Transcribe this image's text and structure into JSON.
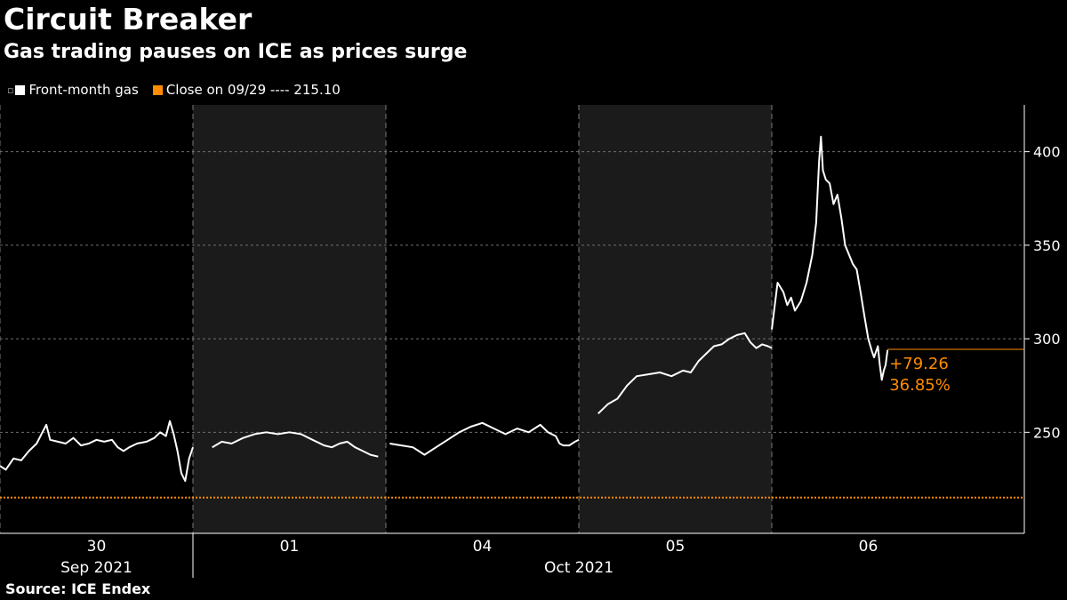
{
  "header": {
    "title": "Circuit Breaker",
    "subtitle": "Gas trading pauses on ICE as prices surge"
  },
  "legend": {
    "series_label": "Front-month gas",
    "reference_label": "Close on 09/29 ---- 215.10",
    "series_color": "#ffffff",
    "reference_color": "#ff8c00",
    "series_icon": "white-square-icon"
  },
  "source": "Source: ICE Endex",
  "chart_data": {
    "type": "line",
    "ylim": [
      196,
      425
    ],
    "yticks": [
      250,
      300,
      350,
      400
    ],
    "grid": "horizontal dashed",
    "sessions": [
      {
        "label": "30",
        "shaded": false
      },
      {
        "label": "01",
        "shaded": true
      },
      {
        "label": "04",
        "shaded": false
      },
      {
        "label": "05",
        "shaded": true
      },
      {
        "label": "06",
        "shaded": false
      }
    ],
    "month_labels": [
      {
        "label": "Sep 2021",
        "from_session": 0,
        "to_session": 0
      },
      {
        "label": "Oct 2021",
        "from_session": 1,
        "to_session": 4
      }
    ],
    "reference_line": {
      "value": 215.1
    },
    "series": [
      {
        "segments": [
          [
            [
              0.0,
              232
            ],
            [
              0.03,
              230
            ],
            [
              0.07,
              236
            ],
            [
              0.11,
              235
            ],
            [
              0.15,
              240
            ],
            [
              0.19,
              244
            ],
            [
              0.22,
              250
            ],
            [
              0.24,
              254
            ],
            [
              0.26,
              246
            ],
            [
              0.3,
              245
            ],
            [
              0.34,
              244
            ],
            [
              0.38,
              247
            ],
            [
              0.42,
              243
            ],
            [
              0.46,
              244
            ],
            [
              0.5,
              246
            ],
            [
              0.54,
              245
            ],
            [
              0.58,
              246
            ],
            [
              0.61,
              242
            ],
            [
              0.64,
              240
            ],
            [
              0.67,
              242
            ],
            [
              0.71,
              244
            ],
            [
              0.76,
              245
            ],
            [
              0.8,
              247
            ],
            [
              0.83,
              250
            ],
            [
              0.86,
              248
            ],
            [
              0.88,
              256
            ],
            [
              0.9,
              249
            ],
            [
              0.92,
              240
            ],
            [
              0.94,
              228
            ],
            [
              0.96,
              224
            ],
            [
              0.98,
              236
            ],
            [
              1.0,
              242
            ]
          ],
          [
            [
              0.1,
              242
            ],
            [
              0.15,
              245
            ],
            [
              0.2,
              244
            ],
            [
              0.26,
              247
            ],
            [
              0.32,
              249
            ],
            [
              0.38,
              250
            ],
            [
              0.44,
              249
            ],
            [
              0.5,
              250
            ],
            [
              0.56,
              249
            ],
            [
              0.62,
              246
            ],
            [
              0.68,
              243
            ],
            [
              0.72,
              242
            ],
            [
              0.76,
              244
            ],
            [
              0.8,
              245
            ],
            [
              0.84,
              242
            ],
            [
              0.88,
              240
            ],
            [
              0.92,
              238
            ],
            [
              0.96,
              237
            ]
          ],
          [
            [
              0.02,
              244
            ],
            [
              0.08,
              243
            ],
            [
              0.14,
              242
            ],
            [
              0.2,
              238
            ],
            [
              0.26,
              242
            ],
            [
              0.32,
              246
            ],
            [
              0.38,
              250
            ],
            [
              0.44,
              253
            ],
            [
              0.5,
              255
            ],
            [
              0.56,
              252
            ],
            [
              0.62,
              249
            ],
            [
              0.68,
              252
            ],
            [
              0.74,
              250
            ],
            [
              0.8,
              254
            ],
            [
              0.84,
              250
            ],
            [
              0.88,
              248
            ],
            [
              0.9,
              244
            ],
            [
              0.92,
              243
            ],
            [
              0.95,
              243
            ],
            [
              0.98,
              245
            ],
            [
              1.0,
              246
            ]
          ],
          [
            [
              0.1,
              260
            ],
            [
              0.15,
              265
            ],
            [
              0.2,
              268
            ],
            [
              0.25,
              275
            ],
            [
              0.3,
              280
            ],
            [
              0.36,
              281
            ],
            [
              0.42,
              282
            ],
            [
              0.48,
              280
            ],
            [
              0.54,
              283
            ],
            [
              0.58,
              282
            ],
            [
              0.62,
              288
            ],
            [
              0.66,
              292
            ],
            [
              0.7,
              296
            ],
            [
              0.74,
              297
            ],
            [
              0.78,
              300
            ],
            [
              0.82,
              302
            ],
            [
              0.86,
              303
            ],
            [
              0.89,
              298
            ],
            [
              0.92,
              295
            ],
            [
              0.95,
              297
            ],
            [
              0.98,
              296
            ],
            [
              1.0,
              295
            ]
          ],
          [
            [
              0.0,
              305
            ],
            [
              0.03,
              330
            ],
            [
              0.06,
              325
            ],
            [
              0.08,
              318
            ],
            [
              0.1,
              322
            ],
            [
              0.12,
              315
            ],
            [
              0.15,
              320
            ],
            [
              0.18,
              330
            ],
            [
              0.21,
              345
            ],
            [
              0.23,
              362
            ],
            [
              0.245,
              395
            ],
            [
              0.255,
              408
            ],
            [
              0.265,
              390
            ],
            [
              0.28,
              385
            ],
            [
              0.3,
              383
            ],
            [
              0.32,
              372
            ],
            [
              0.34,
              377
            ],
            [
              0.36,
              365
            ],
            [
              0.38,
              350
            ],
            [
              0.4,
              345
            ],
            [
              0.42,
              340
            ],
            [
              0.44,
              337
            ],
            [
              0.46,
              325
            ],
            [
              0.48,
              312
            ],
            [
              0.5,
              300
            ],
            [
              0.52,
              293
            ],
            [
              0.53,
              290
            ],
            [
              0.55,
              296
            ],
            [
              0.56,
              286
            ],
            [
              0.57,
              278
            ],
            [
              0.58,
              283
            ],
            [
              0.59,
              286
            ],
            [
              0.6,
              294
            ]
          ]
        ]
      }
    ],
    "annotation": {
      "value": 294.36,
      "change": "+79.26",
      "percent": "36.85%"
    }
  }
}
